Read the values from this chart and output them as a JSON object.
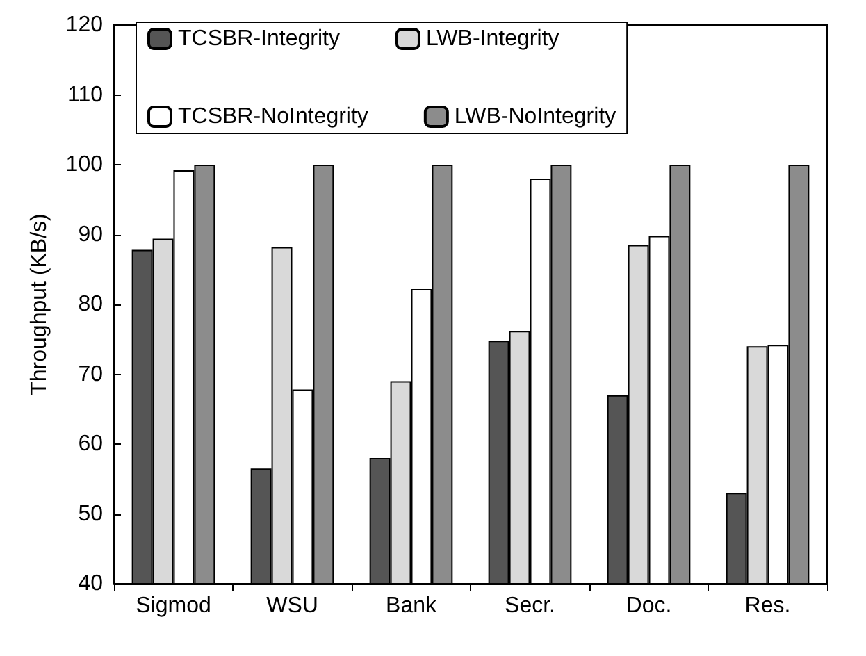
{
  "chart_data": {
    "type": "bar",
    "ylabel": "Throughput (KB/s)",
    "categories": [
      "Sigmod",
      "WSU",
      "Bank",
      "Secr.",
      "Doc.",
      "Res."
    ],
    "series": [
      {
        "name": "TCSBR-Integrity",
        "color": "#555555",
        "values": [
          87.8,
          56.5,
          58,
          74.8,
          67,
          53
        ]
      },
      {
        "name": "LWB-Integrity",
        "color": "#d9d9d9",
        "values": [
          89.4,
          88.2,
          69,
          76.2,
          88.5,
          74
        ]
      },
      {
        "name": "TCSBR-NoIntegrity",
        "color": "#ffffff",
        "values": [
          99.2,
          67.8,
          82.2,
          98,
          89.8,
          74.2
        ]
      },
      {
        "name": "LWB-NoIntegrity",
        "color": "#8c8c8c",
        "values": [
          100,
          100,
          100,
          100,
          100,
          100
        ]
      }
    ],
    "ylim": [
      40,
      120
    ],
    "yticks": [
      40,
      50,
      60,
      70,
      80,
      90,
      100,
      110,
      120
    ],
    "grid": false,
    "legend": "top"
  }
}
